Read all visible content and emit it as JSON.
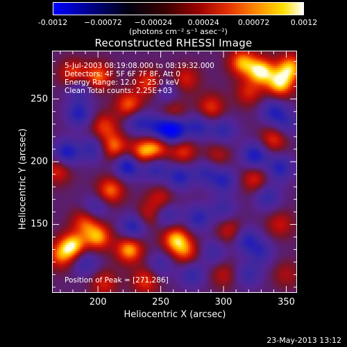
{
  "colorbar": {
    "ticks": [
      "-0.0012",
      "−0.00072",
      "−0.00024",
      "0.00024",
      "0.00072",
      "0.0012"
    ],
    "units": "(photons cm⁻² s⁻¹ asec⁻²)"
  },
  "title": "Reconstructed RHESSI Image",
  "info": {
    "line1": "5-Jul-2003 08:19:08.000 to 08:19:32.000",
    "line2": "Detectors: 4F 5F 6F 7F 8F, Att 0",
    "line3": "Energy Range: 12.0 − 25.0 keV",
    "line4": "Clean     Total counts: 2.25E+03",
    "peak": "Position of Peak = [271,286]"
  },
  "footer": "23-May-2013 13:12",
  "chart_data": {
    "type": "heatmap",
    "title": "Reconstructed RHESSI Image",
    "xlabel": "Heliocentric X (arcsec)",
    "ylabel": "Heliocentric Y (arcsec)",
    "xlim": [
      164,
      358
    ],
    "ylim": [
      96,
      288
    ],
    "xticks": [
      200,
      250,
      300,
      350
    ],
    "yticks": [
      150,
      200,
      250
    ],
    "xtick_labels": [
      "200",
      "250",
      "300",
      "350"
    ],
    "ytick_labels": [
      "150",
      "200",
      "250"
    ],
    "colorbar_range": [
      -0.0012,
      0.0012
    ],
    "blobs": [
      {
        "x": 180,
        "y": 270,
        "v": 0.6
      },
      {
        "x": 200,
        "y": 268,
        "v": 0.7
      },
      {
        "x": 240,
        "y": 263,
        "v": 0.55
      },
      {
        "x": 270,
        "y": 266,
        "v": 0.45
      },
      {
        "x": 315,
        "y": 279,
        "v": 0.8
      },
      {
        "x": 330,
        "y": 272,
        "v": 1.0
      },
      {
        "x": 345,
        "y": 262,
        "v": 0.9
      },
      {
        "x": 353,
        "y": 275,
        "v": 0.85
      },
      {
        "x": 225,
        "y": 245,
        "v": 0.7
      },
      {
        "x": 260,
        "y": 240,
        "v": 0.4
      },
      {
        "x": 205,
        "y": 228,
        "v": 0.55
      },
      {
        "x": 213,
        "y": 212,
        "v": 0.7
      },
      {
        "x": 235,
        "y": 207,
        "v": 0.75
      },
      {
        "x": 247,
        "y": 212,
        "v": 0.7
      },
      {
        "x": 268,
        "y": 208,
        "v": 0.55
      },
      {
        "x": 290,
        "y": 243,
        "v": 0.55
      },
      {
        "x": 320,
        "y": 255,
        "v": 0.45
      },
      {
        "x": 168,
        "y": 193,
        "v": 0.5
      },
      {
        "x": 295,
        "y": 205,
        "v": 0.35
      },
      {
        "x": 340,
        "y": 218,
        "v": 0.55
      },
      {
        "x": 210,
        "y": 177,
        "v": 0.7
      },
      {
        "x": 250,
        "y": 170,
        "v": 0.45
      },
      {
        "x": 240,
        "y": 157,
        "v": 0.4
      },
      {
        "x": 190,
        "y": 152,
        "v": 0.6
      },
      {
        "x": 325,
        "y": 186,
        "v": 0.5
      },
      {
        "x": 262,
        "y": 138,
        "v": 0.85
      },
      {
        "x": 270,
        "y": 128,
        "v": 0.55
      },
      {
        "x": 225,
        "y": 130,
        "v": 0.85
      },
      {
        "x": 200,
        "y": 140,
        "v": 0.8
      },
      {
        "x": 180,
        "y": 133,
        "v": 0.95
      },
      {
        "x": 170,
        "y": 125,
        "v": 0.6
      },
      {
        "x": 305,
        "y": 145,
        "v": 0.45
      },
      {
        "x": 345,
        "y": 150,
        "v": 0.4
      },
      {
        "x": 205,
        "y": 103,
        "v": 0.45
      },
      {
        "x": 238,
        "y": 105,
        "v": 0.55
      },
      {
        "x": 300,
        "y": 110,
        "v": 0.35
      },
      {
        "x": 350,
        "y": 110,
        "v": 0.3
      },
      {
        "x": 260,
        "y": 225,
        "v": -1.0
      },
      {
        "x": 248,
        "y": 226,
        "v": -0.6
      },
      {
        "x": 232,
        "y": 232,
        "v": -0.55
      },
      {
        "x": 175,
        "y": 207,
        "v": -0.7
      },
      {
        "x": 196,
        "y": 210,
        "v": -0.5
      },
      {
        "x": 224,
        "y": 197,
        "v": -0.8
      },
      {
        "x": 245,
        "y": 195,
        "v": -0.55
      },
      {
        "x": 265,
        "y": 188,
        "v": -0.6
      },
      {
        "x": 285,
        "y": 192,
        "v": -0.45
      },
      {
        "x": 300,
        "y": 185,
        "v": -0.55
      },
      {
        "x": 198,
        "y": 163,
        "v": -0.45
      },
      {
        "x": 185,
        "y": 238,
        "v": -0.6
      },
      {
        "x": 280,
        "y": 228,
        "v": -0.55
      },
      {
        "x": 300,
        "y": 225,
        "v": -0.5
      },
      {
        "x": 325,
        "y": 205,
        "v": -0.7
      },
      {
        "x": 345,
        "y": 195,
        "v": -0.6
      },
      {
        "x": 335,
        "y": 172,
        "v": -0.5
      },
      {
        "x": 340,
        "y": 240,
        "v": -0.55
      },
      {
        "x": 350,
        "y": 230,
        "v": -0.4
      },
      {
        "x": 228,
        "y": 148,
        "v": -0.65
      },
      {
        "x": 255,
        "y": 158,
        "v": -0.5
      },
      {
        "x": 280,
        "y": 155,
        "v": -0.55
      },
      {
        "x": 300,
        "y": 162,
        "v": -0.4
      },
      {
        "x": 318,
        "y": 138,
        "v": -0.55
      },
      {
        "x": 292,
        "y": 128,
        "v": -0.4
      },
      {
        "x": 330,
        "y": 128,
        "v": -0.45
      },
      {
        "x": 190,
        "y": 120,
        "v": -0.5
      },
      {
        "x": 275,
        "y": 110,
        "v": -0.5
      },
      {
        "x": 250,
        "y": 118,
        "v": -0.4
      },
      {
        "x": 320,
        "y": 110,
        "v": -0.45
      },
      {
        "x": 185,
        "y": 258,
        "v": -0.45
      },
      {
        "x": 255,
        "y": 255,
        "v": -0.35
      }
    ]
  }
}
